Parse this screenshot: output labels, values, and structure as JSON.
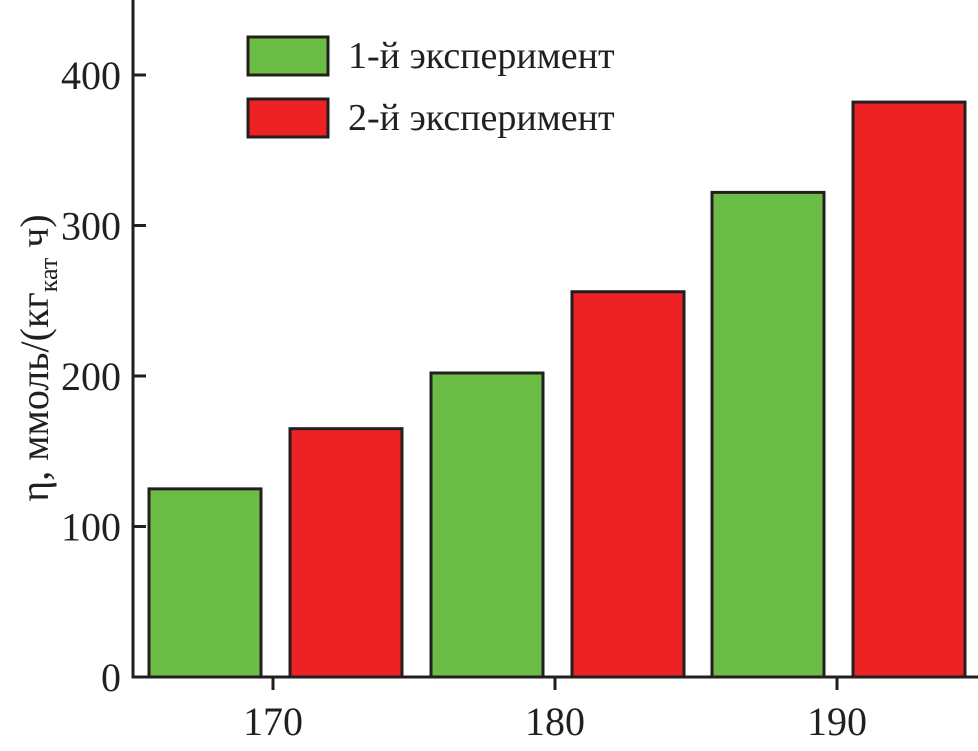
{
  "chart_data": {
    "type": "bar",
    "categories": [
      "170",
      "180",
      "190"
    ],
    "series": [
      {
        "name": "1-й эксперимент",
        "values": [
          125,
          202,
          322
        ],
        "color": "#6cbd45"
      },
      {
        "name": "2-й эксперимент",
        "values": [
          165,
          256,
          382
        ],
        "color": "#ed2224"
      }
    ],
    "ylabel": {
      "prefix": "η, ммоль/(кг",
      "subscript": "кат",
      "suffix": " ч)"
    },
    "xlabel": "",
    "y_ticks": [
      "0",
      "100",
      "200",
      "300",
      "400"
    ],
    "ylim": [
      0,
      450
    ],
    "legend_position": "top-left",
    "grid": false
  }
}
